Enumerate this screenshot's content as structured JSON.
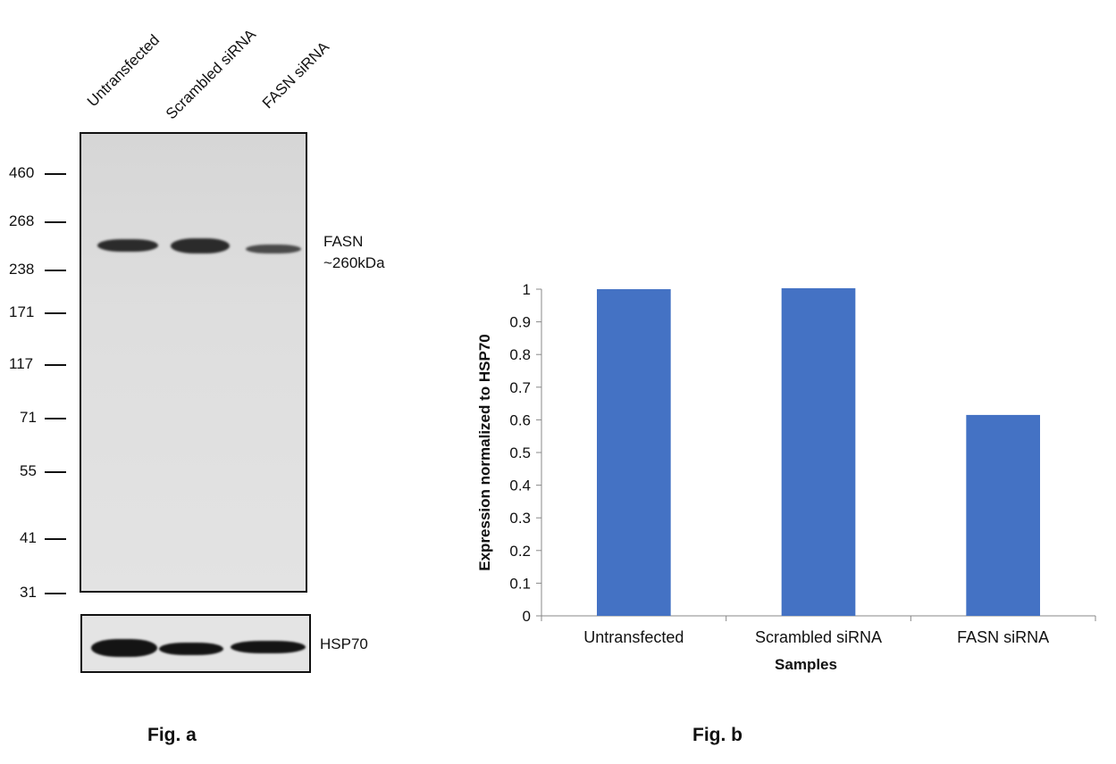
{
  "fig_a": {
    "lane_labels": [
      "Untransfected",
      "Scrambled siRNA",
      "FASN siRNA"
    ],
    "markers": [
      "460",
      "268",
      "238",
      "171",
      "117",
      "71",
      "55",
      "41",
      "31"
    ],
    "target_label": "FASN",
    "target_size": "~260kDa",
    "loading_control": "HSP70",
    "caption": "Fig. a"
  },
  "fig_b": {
    "caption": "Fig. b"
  },
  "chart_data": {
    "type": "bar",
    "categories": [
      "Untransfected",
      "Scrambled siRNA",
      "FASN siRNA"
    ],
    "values": [
      1.0,
      1.003,
      0.615
    ],
    "xlabel": "Samples",
    "ylabel": "Expression normalized to HSP70",
    "ylim": [
      0,
      1
    ],
    "yticks": [
      "0",
      "0.1",
      "0.2",
      "0.3",
      "0.4",
      "0.5",
      "0.6",
      "0.7",
      "0.8",
      "0.9",
      "1"
    ],
    "bar_color": "#4472C4",
    "grid": false,
    "legend": "none"
  }
}
